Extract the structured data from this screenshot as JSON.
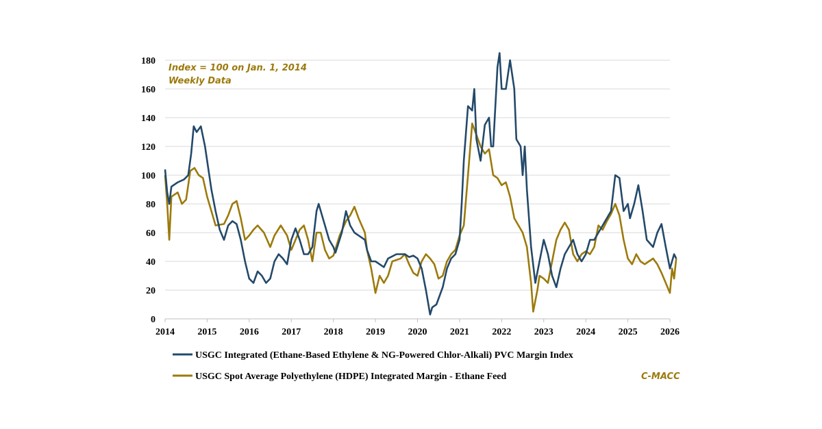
{
  "chart_data": {
    "type": "line",
    "title": "",
    "xlabel": "",
    "ylabel": "",
    "xlim": [
      2014,
      2026
    ],
    "ylim": [
      0,
      180
    ],
    "x_ticks": [
      "2014",
      "2015",
      "2016",
      "2017",
      "2018",
      "2019",
      "2020",
      "2021",
      "2022",
      "2023",
      "2024",
      "2025",
      "2026"
    ],
    "y_ticks": [
      "0",
      "20",
      "40",
      "60",
      "80",
      "100",
      "120",
      "140",
      "160",
      "180"
    ],
    "grid": true,
    "legend_position": "bottom",
    "annotations": [
      "Index = 100 on Jan. 1, 2014",
      "Weekly Data"
    ],
    "source": "C-MACC",
    "series": [
      {
        "name": "USGC Integrated (Ethane-Based Ethylene & NG-Powered Chlor-Alkali) PVC Margin Index",
        "color": "#23496a",
        "x": [
          2014.0,
          2014.05,
          2014.1,
          2014.15,
          2014.3,
          2014.45,
          2014.55,
          2014.62,
          2014.68,
          2014.75,
          2014.85,
          2014.95,
          2015.0,
          2015.1,
          2015.2,
          2015.3,
          2015.4,
          2015.5,
          2015.6,
          2015.7,
          2015.8,
          2015.9,
          2016.0,
          2016.1,
          2016.2,
          2016.3,
          2016.4,
          2016.5,
          2016.6,
          2016.7,
          2016.8,
          2016.9,
          2017.0,
          2017.1,
          2017.2,
          2017.3,
          2017.4,
          2017.5,
          2017.6,
          2017.65,
          2017.8,
          2017.9,
          2018.0,
          2018.05,
          2018.2,
          2018.3,
          2018.4,
          2018.5,
          2018.6,
          2018.75,
          2018.8,
          2018.9,
          2019.0,
          2019.1,
          2019.2,
          2019.3,
          2019.5,
          2019.7,
          2019.8,
          2019.9,
          2020.0,
          2020.1,
          2020.2,
          2020.3,
          2020.35,
          2020.45,
          2020.6,
          2020.7,
          2020.8,
          2020.9,
          2021.0,
          2021.05,
          2021.1,
          2021.2,
          2021.3,
          2021.35,
          2021.4,
          2021.5,
          2021.6,
          2021.7,
          2021.75,
          2021.8,
          2021.9,
          2021.95,
          2022.0,
          2022.1,
          2022.2,
          2022.3,
          2022.35,
          2022.45,
          2022.5,
          2022.55,
          2022.6,
          2022.7,
          2022.8,
          2022.9,
          2023.0,
          2023.1,
          2023.2,
          2023.3,
          2023.4,
          2023.5,
          2023.6,
          2023.7,
          2023.8,
          2023.9,
          2024.0,
          2024.1,
          2024.2,
          2024.3,
          2024.5,
          2024.6,
          2024.7,
          2024.8,
          2024.9,
          2025.0,
          2025.05,
          2025.15,
          2025.25,
          2025.35,
          2025.45,
          2025.6,
          2025.7,
          2025.8,
          2025.9,
          2026.0,
          2026.1,
          2026.15
        ],
        "y": [
          104,
          88,
          80,
          92,
          95,
          97,
          100,
          115,
          134,
          130,
          134,
          120,
          110,
          90,
          75,
          62,
          55,
          65,
          68,
          66,
          55,
          40,
          28,
          25,
          33,
          30,
          25,
          28,
          40,
          45,
          42,
          38,
          55,
          63,
          55,
          45,
          45,
          50,
          75,
          80,
          65,
          55,
          50,
          46,
          60,
          75,
          65,
          60,
          58,
          55,
          48,
          40,
          40,
          38,
          36,
          42,
          45,
          45,
          43,
          44,
          42,
          35,
          20,
          3,
          8,
          10,
          22,
          35,
          42,
          45,
          55,
          80,
          110,
          148,
          145,
          160,
          125,
          110,
          135,
          140,
          120,
          120,
          175,
          185,
          160,
          160,
          180,
          160,
          125,
          120,
          100,
          120,
          90,
          50,
          25,
          40,
          55,
          45,
          30,
          22,
          35,
          45,
          50,
          55,
          45,
          40,
          45,
          55,
          55,
          60,
          70,
          75,
          100,
          98,
          75,
          80,
          70,
          80,
          93,
          75,
          55,
          50,
          60,
          66,
          50,
          35,
          45,
          42
        ]
      },
      {
        "name": "USGC Spot Average Polyethylene (HDPE) Integrated Margin - Ethane Feed",
        "color": "#9c7a0b",
        "x": [
          2014.0,
          2014.05,
          2014.1,
          2014.15,
          2014.3,
          2014.4,
          2014.5,
          2014.6,
          2014.7,
          2014.8,
          2014.9,
          2015.0,
          2015.1,
          2015.2,
          2015.4,
          2015.5,
          2015.6,
          2015.7,
          2015.8,
          2015.9,
          2016.0,
          2016.1,
          2016.2,
          2016.35,
          2016.5,
          2016.6,
          2016.75,
          2016.9,
          2017.0,
          2017.1,
          2017.2,
          2017.3,
          2017.4,
          2017.5,
          2017.6,
          2017.7,
          2017.8,
          2017.9,
          2018.0,
          2018.15,
          2018.3,
          2018.4,
          2018.5,
          2018.6,
          2018.75,
          2018.8,
          2018.9,
          2019.0,
          2019.1,
          2019.2,
          2019.3,
          2019.4,
          2019.6,
          2019.7,
          2019.8,
          2019.9,
          2020.0,
          2020.1,
          2020.2,
          2020.3,
          2020.4,
          2020.5,
          2020.6,
          2020.7,
          2020.8,
          2020.9,
          2021.0,
          2021.1,
          2021.2,
          2021.3,
          2021.4,
          2021.5,
          2021.6,
          2021.7,
          2021.8,
          2021.9,
          2022.0,
          2022.1,
          2022.2,
          2022.3,
          2022.4,
          2022.5,
          2022.6,
          2022.7,
          2022.75,
          2022.85,
          2022.9,
          2023.0,
          2023.1,
          2023.2,
          2023.3,
          2023.4,
          2023.5,
          2023.6,
          2023.7,
          2023.8,
          2023.9,
          2024.0,
          2024.1,
          2024.2,
          2024.3,
          2024.4,
          2024.5,
          2024.6,
          2024.7,
          2024.8,
          2024.9,
          2025.0,
          2025.1,
          2025.2,
          2025.3,
          2025.4,
          2025.5,
          2025.6,
          2025.7,
          2025.8,
          2025.9,
          2026.0,
          2026.05,
          2026.1,
          2026.15
        ],
        "y": [
          100,
          80,
          55,
          85,
          88,
          80,
          83,
          103,
          105,
          100,
          98,
          85,
          75,
          65,
          66,
          72,
          80,
          82,
          70,
          55,
          58,
          62,
          65,
          60,
          50,
          58,
          65,
          58,
          48,
          55,
          62,
          65,
          55,
          40,
          60,
          60,
          48,
          42,
          44,
          58,
          68,
          72,
          78,
          70,
          60,
          48,
          35,
          18,
          30,
          25,
          30,
          40,
          42,
          45,
          38,
          32,
          30,
          40,
          45,
          42,
          38,
          28,
          30,
          40,
          45,
          48,
          58,
          65,
          100,
          136,
          128,
          120,
          115,
          118,
          100,
          98,
          93,
          95,
          85,
          70,
          65,
          60,
          50,
          25,
          5,
          20,
          30,
          28,
          25,
          40,
          55,
          62,
          67,
          62,
          45,
          40,
          45,
          47,
          45,
          50,
          65,
          62,
          68,
          73,
          80,
          72,
          55,
          42,
          38,
          45,
          40,
          38,
          40,
          42,
          38,
          32,
          25,
          18,
          35,
          28,
          42
        ]
      }
    ]
  }
}
